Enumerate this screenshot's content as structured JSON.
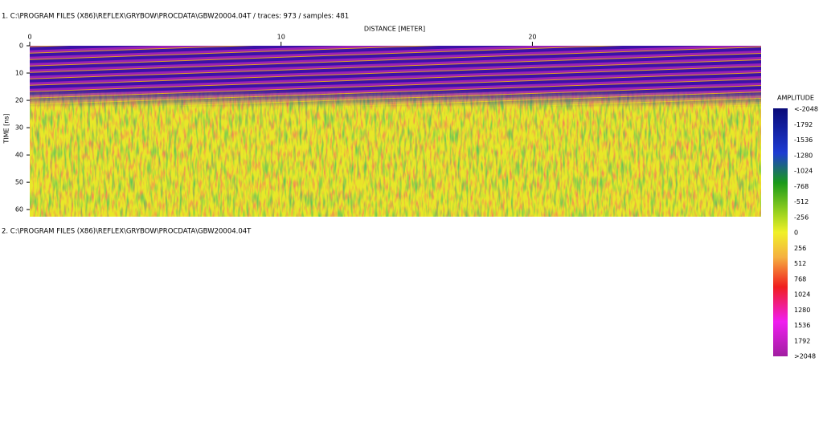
{
  "panels": [
    {
      "header": "1. C:\\PROGRAM FILES (X86)\\REFLEX\\GRYBOW\\PROCDATA\\GBW20004.04T  / traces: 973 / samples: 481",
      "x_axis": {
        "label": "DISTANCE [METER]",
        "lim": [
          0,
          29.1
        ],
        "ticks": [
          0,
          10,
          20
        ]
      },
      "y_axis": {
        "label": "TIME [ns]",
        "lim": [
          0,
          62.6
        ],
        "ticks": [
          0,
          10,
          20,
          30,
          40,
          50,
          60
        ]
      }
    },
    {
      "header": "2. C:\\PROGRAM FILES (X86)\\REFLEX\\GRYBOW\\PROCDATA\\GBW20004.04T"
    }
  ],
  "colorbar": {
    "title": "AMPLITUDE",
    "labels": [
      "<-2048",
      "-1792",
      "-1536",
      "-1280",
      "-1024",
      "-768",
      "-512",
      "-256",
      "0",
      "256",
      "512",
      "768",
      "1024",
      "1280",
      "1536",
      "1792",
      ">2048"
    ]
  }
}
